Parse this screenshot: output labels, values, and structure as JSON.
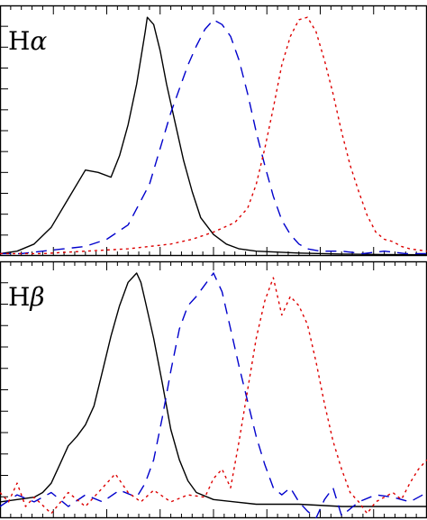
{
  "chart_data": [
    {
      "type": "line",
      "panel_label": "Hα",
      "panel_label_base": "H",
      "panel_label_symbol": "α",
      "xlim": [
        0,
        1
      ],
      "ylim": [
        0,
        1.05
      ],
      "grid": false,
      "series": [
        {
          "style": "solid",
          "color": "#000000",
          "x": [
            0,
            0.04,
            0.08,
            0.12,
            0.16,
            0.2,
            0.23,
            0.26,
            0.28,
            0.3,
            0.32,
            0.34,
            0.345,
            0.36,
            0.375,
            0.39,
            0.41,
            0.43,
            0.45,
            0.47,
            0.5,
            0.53,
            0.56,
            0.6,
            0.7,
            0.8,
            0.9,
            1.0
          ],
          "y": [
            0.01,
            0.02,
            0.05,
            0.12,
            0.24,
            0.36,
            0.35,
            0.33,
            0.42,
            0.55,
            0.72,
            0.94,
            1.0,
            0.97,
            0.86,
            0.72,
            0.56,
            0.4,
            0.27,
            0.16,
            0.09,
            0.05,
            0.03,
            0.02,
            0.012,
            0.008,
            0.006,
            0.005
          ]
        },
        {
          "style": "dashed",
          "color": "#0000cc",
          "x": [
            0,
            0.05,
            0.1,
            0.15,
            0.2,
            0.25,
            0.3,
            0.35,
            0.4,
            0.42,
            0.44,
            0.46,
            0.48,
            0.5,
            0.52,
            0.54,
            0.56,
            0.58,
            0.6,
            0.62,
            0.64,
            0.66,
            0.68,
            0.7,
            0.72,
            0.75,
            0.8,
            0.85,
            0.9,
            0.95,
            1.0
          ],
          "y": [
            0.01,
            0.01,
            0.02,
            0.03,
            0.04,
            0.07,
            0.13,
            0.3,
            0.6,
            0.7,
            0.8,
            0.88,
            0.95,
            0.99,
            0.97,
            0.92,
            0.82,
            0.68,
            0.52,
            0.38,
            0.25,
            0.15,
            0.09,
            0.05,
            0.03,
            0.02,
            0.02,
            0.01,
            0.02,
            0.01,
            0.01
          ]
        },
        {
          "style": "dotted",
          "color": "#dd0000",
          "x": [
            0,
            0.1,
            0.2,
            0.3,
            0.4,
            0.45,
            0.5,
            0.55,
            0.58,
            0.6,
            0.62,
            0.64,
            0.66,
            0.68,
            0.7,
            0.72,
            0.74,
            0.76,
            0.78,
            0.8,
            0.82,
            0.84,
            0.86,
            0.88,
            0.9,
            0.92,
            0.94,
            0.96,
            1.0
          ],
          "y": [
            0.01,
            0.01,
            0.02,
            0.03,
            0.05,
            0.07,
            0.1,
            0.14,
            0.2,
            0.3,
            0.45,
            0.62,
            0.8,
            0.92,
            0.99,
            1.0,
            0.94,
            0.82,
            0.68,
            0.52,
            0.38,
            0.27,
            0.17,
            0.1,
            0.07,
            0.06,
            0.04,
            0.03,
            0.02
          ]
        }
      ]
    },
    {
      "type": "line",
      "panel_label": "Hβ",
      "panel_label_base": "H",
      "panel_label_symbol": "β",
      "xlim": [
        0,
        1
      ],
      "ylim": [
        -0.05,
        1.05
      ],
      "grid": false,
      "series": [
        {
          "style": "solid",
          "color": "#000000",
          "x": [
            0,
            0.04,
            0.08,
            0.1,
            0.12,
            0.14,
            0.16,
            0.18,
            0.2,
            0.22,
            0.24,
            0.26,
            0.28,
            0.3,
            0.32,
            0.33,
            0.34,
            0.36,
            0.38,
            0.4,
            0.42,
            0.44,
            0.46,
            0.5,
            0.55,
            0.6,
            0.7,
            0.8,
            0.9,
            1.0
          ],
          "y": [
            0.02,
            0.03,
            0.04,
            0.06,
            0.1,
            0.18,
            0.26,
            0.3,
            0.35,
            0.43,
            0.58,
            0.73,
            0.86,
            0.96,
            1.0,
            0.96,
            0.88,
            0.72,
            0.53,
            0.33,
            0.2,
            0.11,
            0.06,
            0.03,
            0.02,
            0.01,
            0.01,
            0.0,
            0.0,
            0.0
          ]
        },
        {
          "style": "dashed",
          "color": "#0000cc",
          "x": [
            0,
            0.04,
            0.08,
            0.12,
            0.16,
            0.2,
            0.24,
            0.28,
            0.32,
            0.34,
            0.36,
            0.38,
            0.4,
            0.42,
            0.44,
            0.46,
            0.48,
            0.5,
            0.52,
            0.54,
            0.56,
            0.58,
            0.6,
            0.62,
            0.64,
            0.66,
            0.68,
            0.7,
            0.72,
            0.74,
            0.76,
            0.78,
            0.8,
            0.84,
            0.88,
            0.92,
            0.96,
            1.0
          ],
          "y": [
            0.0,
            0.05,
            0.02,
            0.06,
            0.0,
            0.05,
            0.02,
            0.07,
            0.04,
            0.1,
            0.2,
            0.38,
            0.58,
            0.76,
            0.86,
            0.9,
            0.95,
            1.0,
            0.92,
            0.76,
            0.6,
            0.45,
            0.3,
            0.18,
            0.08,
            0.05,
            0.08,
            0.02,
            -0.02,
            -0.05,
            0.03,
            0.08,
            -0.04,
            0.02,
            0.05,
            0.04,
            0.02,
            0.06
          ]
        },
        {
          "style": "dotted",
          "color": "#dd0000",
          "x": [
            0,
            0.02,
            0.04,
            0.06,
            0.08,
            0.12,
            0.16,
            0.2,
            0.24,
            0.27,
            0.3,
            0.33,
            0.36,
            0.4,
            0.44,
            0.48,
            0.5,
            0.52,
            0.54,
            0.56,
            0.58,
            0.6,
            0.62,
            0.64,
            0.66,
            0.68,
            0.7,
            0.72,
            0.74,
            0.76,
            0.78,
            0.8,
            0.82,
            0.84,
            0.86,
            0.88,
            0.9,
            0.92,
            0.94,
            0.96,
            0.98,
            1.0
          ],
          "y": [
            0.06,
            0.02,
            0.1,
            0.0,
            0.04,
            -0.03,
            0.06,
            0.0,
            0.08,
            0.14,
            0.06,
            0.02,
            0.07,
            0.02,
            0.05,
            0.04,
            0.12,
            0.16,
            0.08,
            0.28,
            0.5,
            0.72,
            0.88,
            0.98,
            0.82,
            0.9,
            0.86,
            0.78,
            0.62,
            0.44,
            0.28,
            0.16,
            0.06,
            0.02,
            -0.03,
            0.02,
            0.04,
            0.06,
            0.03,
            0.1,
            0.16,
            0.2
          ]
        }
      ]
    }
  ]
}
